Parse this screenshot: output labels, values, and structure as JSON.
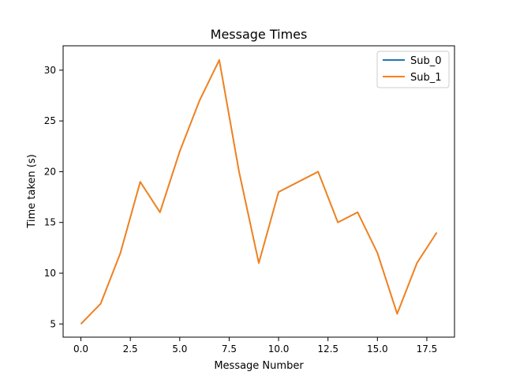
{
  "chart_data": {
    "type": "line",
    "title": "Message Times",
    "xlabel": "Message Number",
    "ylabel": "Time taken (s)",
    "xlim": [
      -0.9,
      18.9
    ],
    "ylim": [
      3.7,
      32.4
    ],
    "xticks": [
      0,
      2.5,
      5,
      7.5,
      10,
      12.5,
      15,
      17.5
    ],
    "xtick_labels": [
      "0.0",
      "2.5",
      "5.0",
      "7.5",
      "10.0",
      "12.5",
      "15.0",
      "17.5"
    ],
    "yticks": [
      5,
      10,
      15,
      20,
      25,
      30
    ],
    "ytick_labels": [
      "5",
      "10",
      "15",
      "20",
      "25",
      "30"
    ],
    "grid": false,
    "legend_position": "top-right",
    "x": [
      0,
      1,
      2,
      3,
      4,
      5,
      6,
      7,
      8,
      9,
      10,
      11,
      12,
      13,
      14,
      15,
      16,
      17,
      18
    ],
    "series": [
      {
        "name": "Sub_0",
        "color": "#1f77b4",
        "values": [
          5,
          7,
          12,
          19,
          16,
          22,
          27,
          31,
          20,
          11,
          18,
          19,
          20,
          15,
          16,
          12,
          6,
          11,
          14
        ]
      },
      {
        "name": "Sub_1",
        "color": "#ff7f0e",
        "values": [
          5,
          7,
          12,
          19,
          16,
          22,
          27,
          31,
          20,
          11,
          18,
          19,
          20,
          15,
          16,
          12,
          6,
          11,
          14
        ]
      }
    ]
  }
}
